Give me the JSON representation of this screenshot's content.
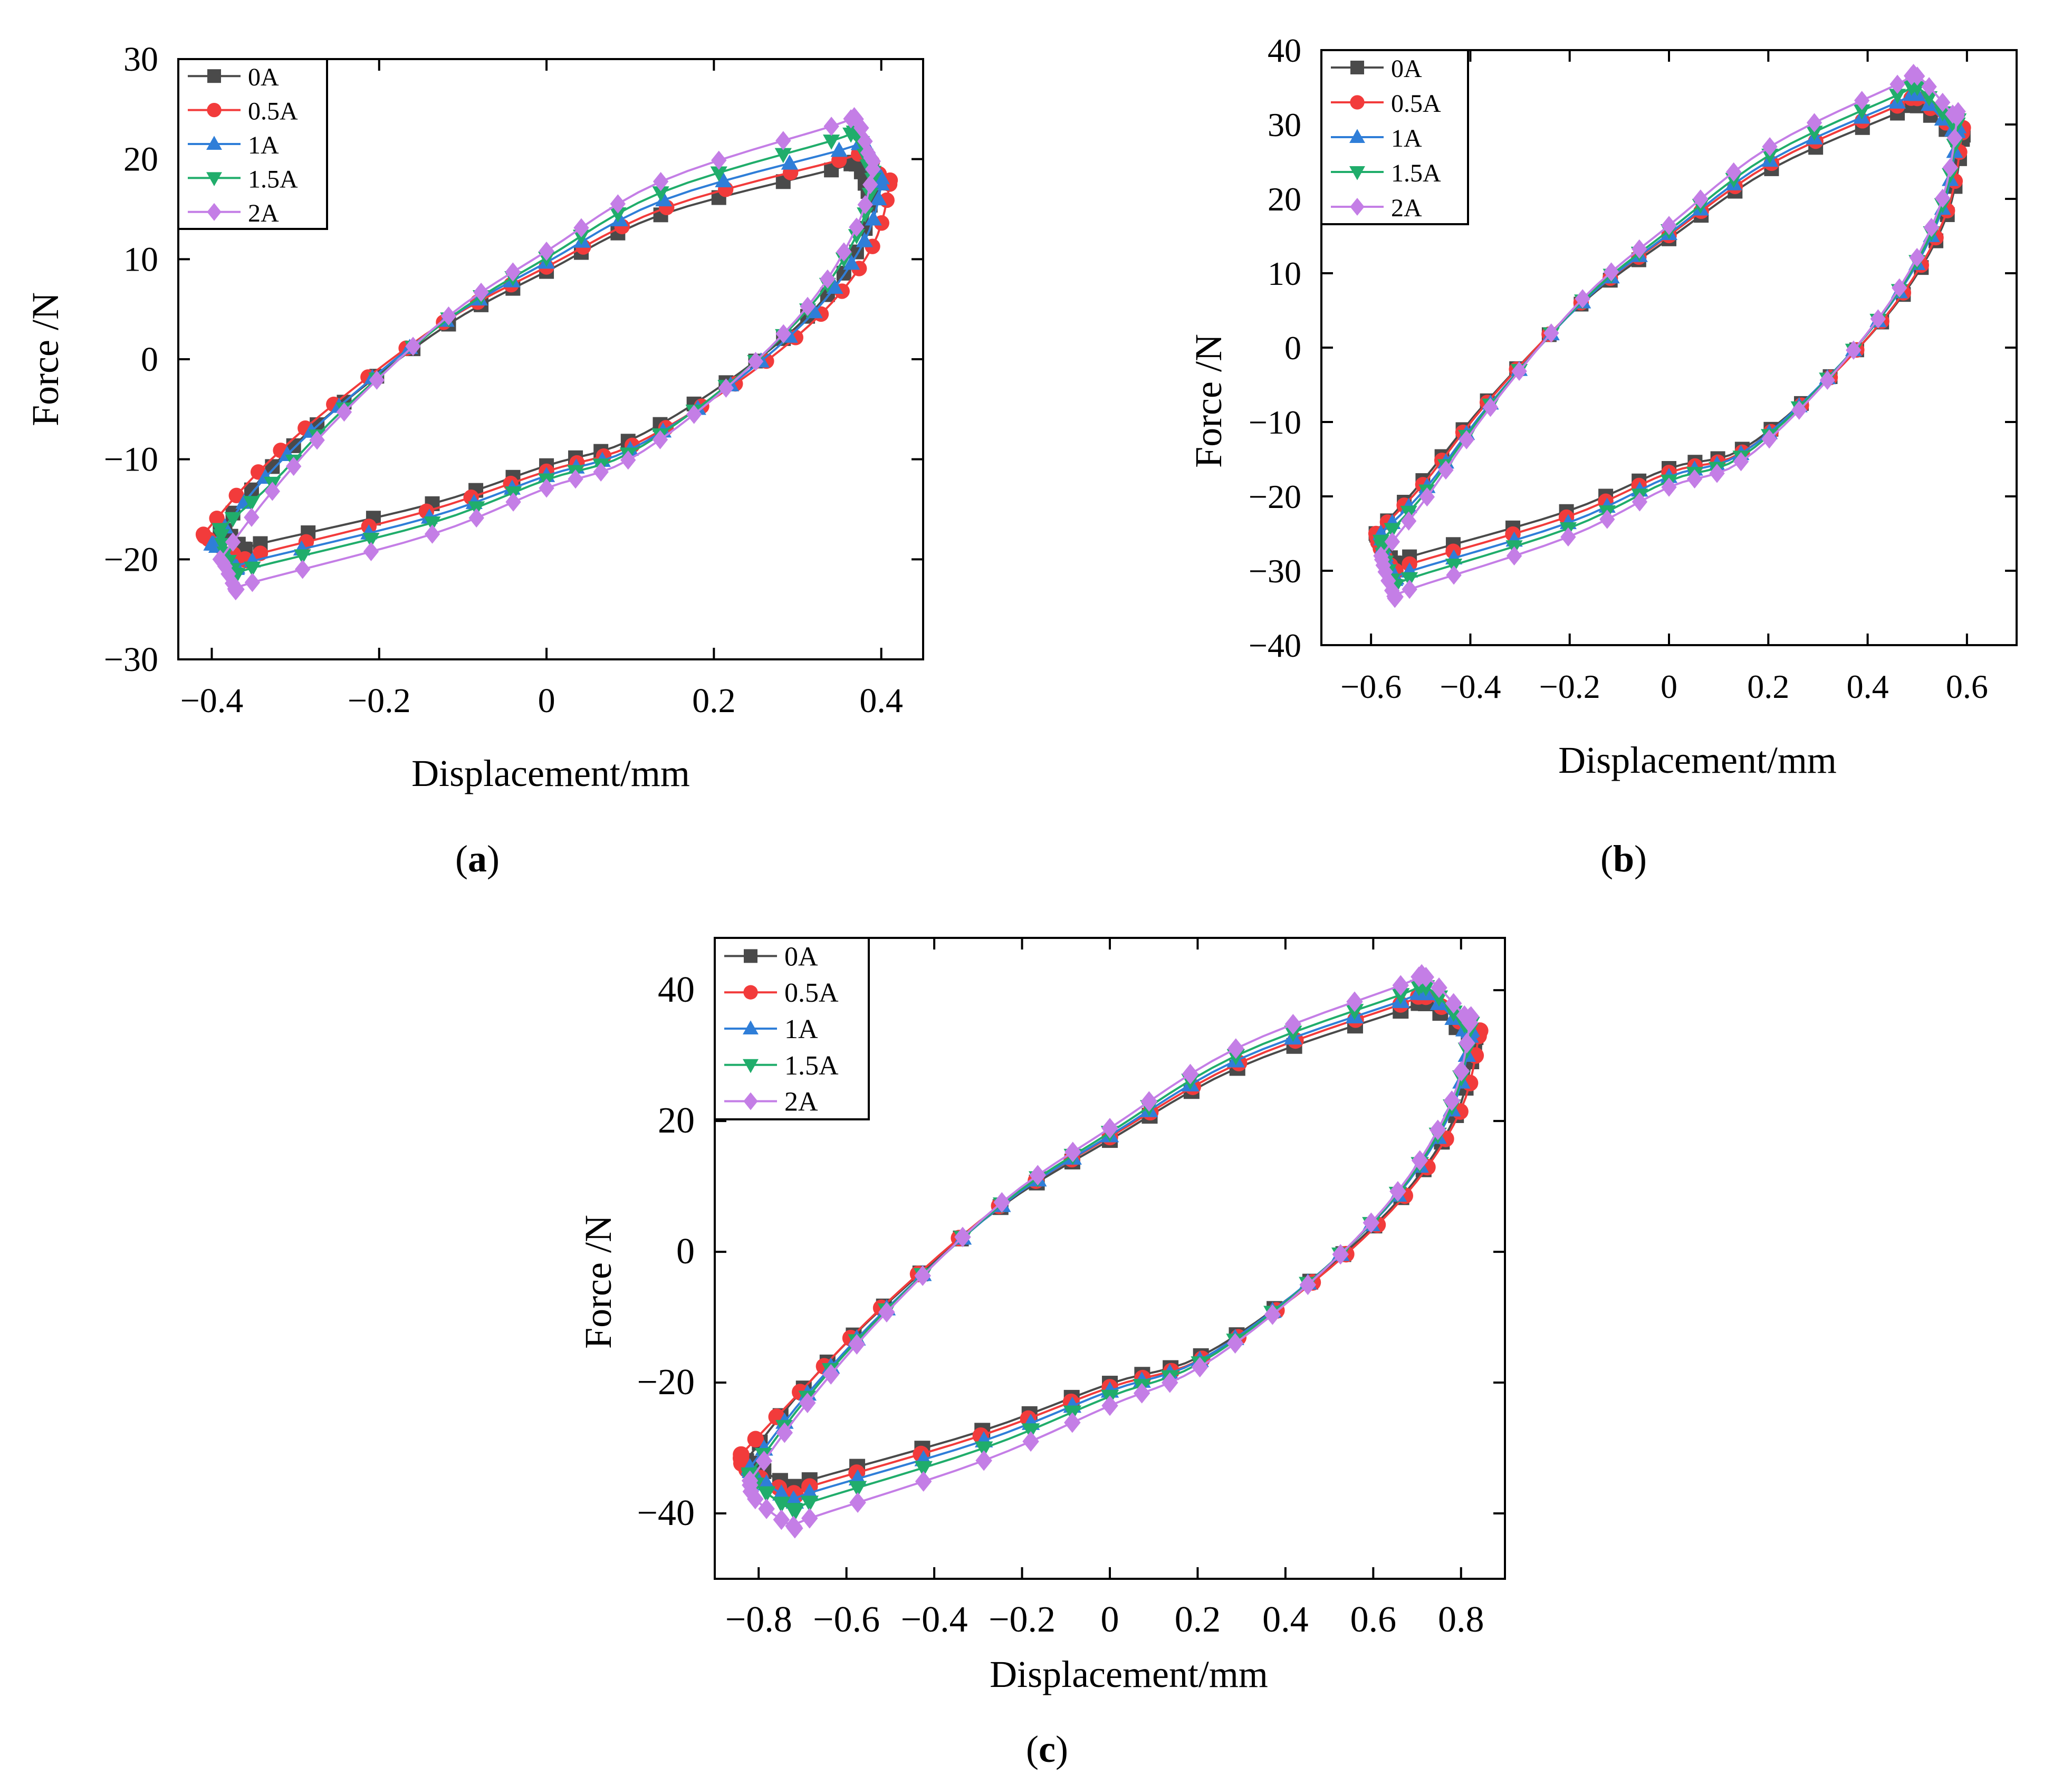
{
  "panel_labels": [
    "a",
    "b",
    "c"
  ],
  "colors": {
    "0A": "#4a4a4a",
    "0.5A": "#f23b3b",
    "1A": "#2f7ed8",
    "1.5A": "#20ad6b",
    "2A": "#c47ee6"
  },
  "markers": {
    "0A": "square",
    "0.5A": "circle",
    "1A": "triangle-up",
    "1.5A": "triangle-down",
    "2A": "diamond"
  },
  "chart_data": [
    {
      "type": "line",
      "panel": "a",
      "xlabel": "Displacement/mm",
      "ylabel": "Force /N",
      "xlim": [
        -0.44,
        0.45
      ],
      "ylim": [
        -30,
        30
      ],
      "xticks": [
        -0.4,
        -0.2,
        0,
        0.2,
        0.4
      ],
      "xtick_labels": [
        "−0.4",
        "−0.2",
        "0",
        "0.2",
        "0.4"
      ],
      "yticks": [
        -30,
        -20,
        -10,
        0,
        10,
        20,
        30
      ],
      "ytick_labels": [
        "−30",
        "−20",
        "−10",
        "0",
        "10",
        "20",
        "30"
      ],
      "legend_position": "top-left",
      "series": [
        {
          "name": "0A",
          "amplitude": 0.39,
          "peak_force": 19.5,
          "min_force": -19.0,
          "peak_disp": 0.37,
          "min_disp": -0.36,
          "end_force": 17.0,
          "start_force": -17.0
        },
        {
          "name": "0.5A",
          "amplitude": 0.41,
          "peak_force": 20.5,
          "min_force": -20.0,
          "peak_disp": 0.38,
          "min_disp": -0.36,
          "end_force": 17.5,
          "start_force": -17.5
        },
        {
          "name": "1A",
          "amplitude": 0.4,
          "peak_force": 21.5,
          "min_force": -20.8,
          "peak_disp": 0.38,
          "min_disp": -0.37,
          "end_force": 17.5,
          "start_force": -18.5
        },
        {
          "name": "1.5A",
          "amplitude": 0.39,
          "peak_force": 22.5,
          "min_force": -21.5,
          "peak_disp": 0.37,
          "min_disp": -0.37,
          "end_force": 18.0,
          "start_force": -17.0
        },
        {
          "name": "2A",
          "amplitude": 0.39,
          "peak_force": 24.0,
          "min_force": -23.0,
          "peak_disp": 0.37,
          "min_disp": -0.37,
          "end_force": 19.0,
          "start_force": -20.0
        }
      ]
    },
    {
      "type": "line",
      "panel": "b",
      "xlabel": "Displacement/mm",
      "ylabel": "Force /N",
      "xlim": [
        -0.7,
        0.7
      ],
      "ylim": [
        -40,
        40
      ],
      "xticks": [
        -0.6,
        -0.4,
        -0.2,
        0,
        0.2,
        0.4,
        0.6
      ],
      "xtick_labels": [
        "−0.6",
        "−0.4",
        "−0.2",
        "0",
        "0.2",
        "0.4",
        "0.6"
      ],
      "yticks": [
        -40,
        -30,
        -20,
        -10,
        0,
        10,
        20,
        30,
        40
      ],
      "ytick_labels": [
        "−40",
        "−30",
        "−20",
        "−10",
        "0",
        "10",
        "20",
        "30",
        "40"
      ],
      "legend_position": "top-left",
      "series": [
        {
          "name": "0A",
          "amplitude": 0.59,
          "peak_force": 32.5,
          "min_force": -29.0,
          "peak_disp": 0.5,
          "min_disp": -0.55,
          "end_force": 28.0,
          "start_force": -25.0
        },
        {
          "name": "0.5A",
          "amplitude": 0.59,
          "peak_force": 33.5,
          "min_force": -30.0,
          "peak_disp": 0.5,
          "min_disp": -0.55,
          "end_force": 29.0,
          "start_force": -25.0
        },
        {
          "name": "1A",
          "amplitude": 0.58,
          "peak_force": 34.0,
          "min_force": -31.0,
          "peak_disp": 0.5,
          "min_disp": -0.55,
          "end_force": 29.0,
          "start_force": -25.0
        },
        {
          "name": "1.5A",
          "amplitude": 0.58,
          "peak_force": 35.0,
          "min_force": -32.0,
          "peak_disp": 0.5,
          "min_disp": -0.55,
          "end_force": 30.0,
          "start_force": -26.0
        },
        {
          "name": "2A",
          "amplitude": 0.58,
          "peak_force": 36.5,
          "min_force": -33.5,
          "peak_disp": 0.5,
          "min_disp": -0.55,
          "end_force": 31.0,
          "start_force": -28.0
        }
      ]
    },
    {
      "type": "line",
      "panel": "c",
      "xlabel": "Displacement/mm",
      "ylabel": "Force /N",
      "xlim": [
        -0.9,
        0.9
      ],
      "ylim": [
        -50,
        48
      ],
      "xticks": [
        -0.8,
        -0.6,
        -0.4,
        -0.2,
        0,
        0.2,
        0.4,
        0.6,
        0.8
      ],
      "xtick_labels": [
        "−0.8",
        "−0.6",
        "−0.4",
        "−0.2",
        "0",
        "0.2",
        "0.4",
        "0.6",
        "0.8"
      ],
      "yticks": [
        -40,
        -20,
        0,
        20,
        40
      ],
      "ytick_labels": [
        "−40",
        "−20",
        "0",
        "20",
        "40"
      ],
      "legend_position": "top-left",
      "series": [
        {
          "name": "0A",
          "amplitude": 0.83,
          "peak_force": 38.0,
          "min_force": -36.0,
          "peak_disp": 0.72,
          "min_disp": -0.72,
          "end_force": 32.0,
          "start_force": -32.0
        },
        {
          "name": "0.5A",
          "amplitude": 0.84,
          "peak_force": 39.0,
          "min_force": -37.0,
          "peak_disp": 0.72,
          "min_disp": -0.72,
          "end_force": 33.0,
          "start_force": -31.0
        },
        {
          "name": "1A",
          "amplitude": 0.82,
          "peak_force": 39.5,
          "min_force": -38.0,
          "peak_disp": 0.72,
          "min_disp": -0.72,
          "end_force": 33.0,
          "start_force": -33.0
        },
        {
          "name": "1.5A",
          "amplitude": 0.82,
          "peak_force": 40.5,
          "min_force": -39.5,
          "peak_disp": 0.72,
          "min_disp": -0.72,
          "end_force": 34.0,
          "start_force": -34.0
        },
        {
          "name": "2A",
          "amplitude": 0.82,
          "peak_force": 42.0,
          "min_force": -42.0,
          "peak_disp": 0.72,
          "min_disp": -0.72,
          "end_force": 35.0,
          "start_force": -35.0
        }
      ]
    }
  ]
}
